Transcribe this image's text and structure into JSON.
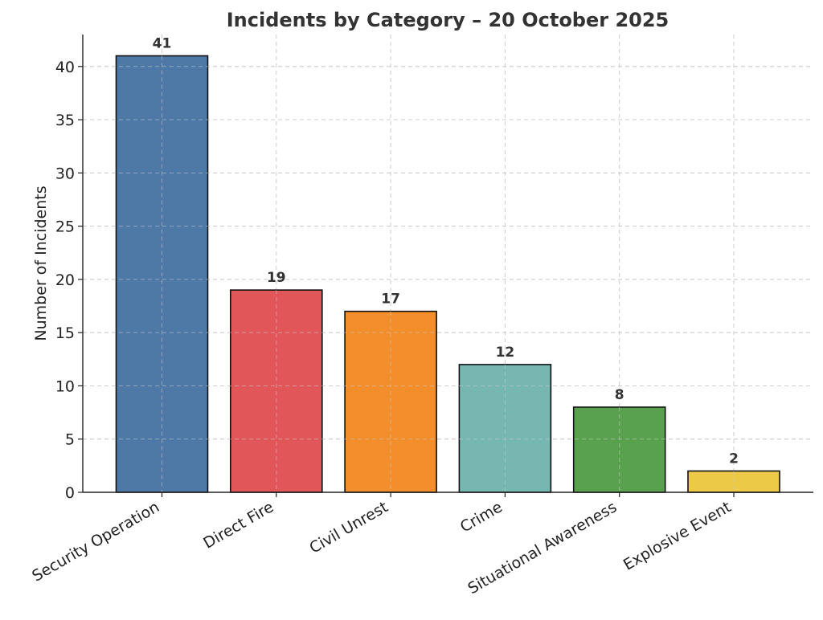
{
  "chart_data": {
    "type": "bar",
    "title": "Incidents by Category – 20 October 2025",
    "xlabel": "",
    "ylabel": "Number of Incidents",
    "categories": [
      "Security Operation",
      "Direct Fire",
      "Civil Unrest",
      "Crime",
      "Situational Awareness",
      "Explosive Event"
    ],
    "values": [
      41,
      19,
      17,
      12,
      8,
      2
    ],
    "colors": [
      "#4e79a7",
      "#e15759",
      "#f28e2b",
      "#76b7b2",
      "#59a14f",
      "#edc948"
    ],
    "ylim": [
      0,
      43
    ],
    "yticks": [
      0,
      5,
      10,
      15,
      20,
      25,
      30,
      35,
      40
    ],
    "grid": true,
    "legend": "none"
  }
}
